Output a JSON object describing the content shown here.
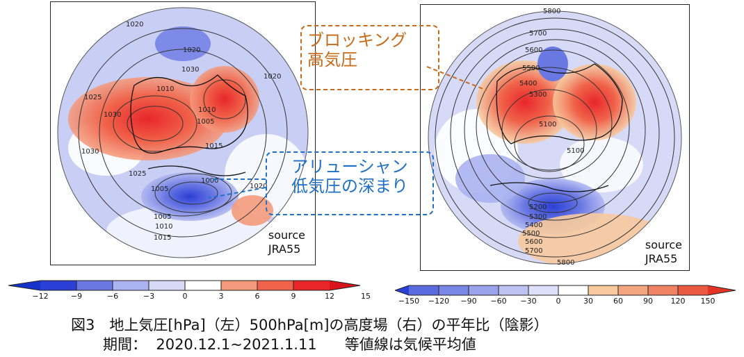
{
  "panels": {
    "left": {
      "source_label": "source\nJRA55",
      "contour_labels": [
        "1020",
        "1020",
        "1030",
        "1010",
        "1020",
        "1025",
        "1030",
        "1010",
        "1005",
        "1015",
        "1030",
        "1025",
        "1005",
        "1000",
        "1020",
        "1005",
        "1010",
        "1015"
      ]
    },
    "right": {
      "source_label": "source\nJRA55",
      "contour_labels": [
        "5800",
        "5700",
        "5600",
        "5500",
        "5400",
        "5300",
        "5100",
        "5100",
        "5200",
        "5300",
        "5400",
        "5500",
        "5600",
        "5700",
        "5800"
      ]
    }
  },
  "callouts": {
    "blocking": "ブロッキング\n高気圧",
    "aleutian": "アリューシャン\n低気圧の深まり"
  },
  "colorbars": {
    "left": {
      "ticks": [
        "−12",
        "−9",
        "−6",
        "−3",
        "0",
        "3",
        "6",
        "9",
        "12",
        "15"
      ]
    },
    "right": {
      "ticks": [
        "−150",
        "−120",
        "−90",
        "−60",
        "−30",
        "0",
        "30",
        "60",
        "90",
        "120",
        "150"
      ]
    }
  },
  "colors": {
    "blue_dark": "#2b3fd6",
    "blue_mid": "#6a78e3",
    "blue_light": "#aab2ef",
    "blue_pale": "#d6daf7",
    "red_dark": "#e8262a",
    "red_mid": "#f0634a",
    "red_light": "#f49a7c",
    "orange_pale": "#f7c99c"
  },
  "caption": {
    "line1": "図3　地上気圧[hPa]（左）500hPa[m]の高度場（右）の平年比（陰影）",
    "line2": "期間：  2020.12.1~2021.1.11      等値線は気候平均値"
  }
}
